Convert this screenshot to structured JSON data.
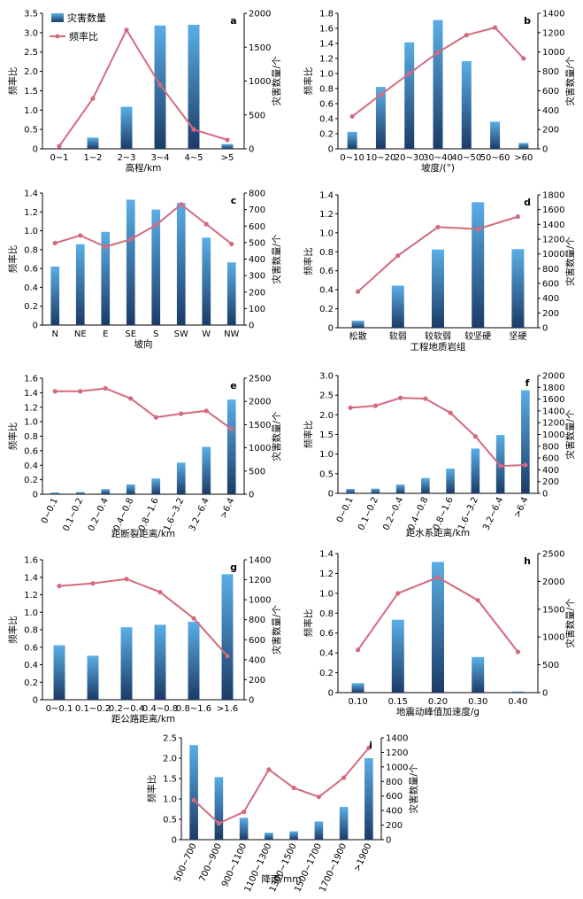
{
  "legend": {
    "bar_label": "灾害数量",
    "line_label": "频率比"
  },
  "colors": {
    "bar_top": "#5aaee6",
    "bar_bottom": "#1b3b66",
    "line": "#d46a7e",
    "axis": "#000000"
  },
  "chart_data": [
    {
      "type": "bar",
      "panel": "a",
      "categories": [
        "0~1",
        "1~2",
        "2~3",
        "3~4",
        "4~5",
        ">5"
      ],
      "xlabel": "高程/km",
      "ylabel_left": "频率比",
      "ylabel_right": "灾害数量/个",
      "ylim_left": [
        0,
        3.5
      ],
      "yticks_left": [
        "0",
        "0.5",
        "1.0",
        "1.5",
        "2.0",
        "2.5",
        "3.0",
        "3.5"
      ],
      "ylim_right": [
        0,
        2000
      ],
      "yticks_right": [
        "0",
        "500",
        "1000",
        "1500",
        "2000"
      ],
      "rotate_x": false,
      "series": [
        {
          "name": "灾害数量",
          "type": "bar",
          "axis": "right",
          "values": [
            0,
            165,
            620,
            1820,
            1830,
            70
          ]
        },
        {
          "name": "频率比",
          "type": "line",
          "axis": "left",
          "values": [
            0.07,
            1.3,
            3.07,
            1.65,
            0.5,
            0.23
          ]
        }
      ]
    },
    {
      "type": "bar",
      "panel": "b",
      "categories": [
        "0~10",
        "10~20",
        "20~30",
        "30~40",
        "40~50",
        "50~60",
        ">60"
      ],
      "xlabel": "坡度/(°)",
      "ylabel_left": "频率比",
      "ylabel_right": "灾害数量/个",
      "ylim_left": [
        0,
        1.8
      ],
      "yticks_left": [
        "0",
        "0.2",
        "0.4",
        "0.6",
        "0.8",
        "1.0",
        "1.2",
        "1.4",
        "1.6",
        "1.8"
      ],
      "ylim_right": [
        0,
        1400
      ],
      "yticks_right": [
        "0",
        "200",
        "400",
        "600",
        "800",
        "1000",
        "1200",
        "1400"
      ],
      "rotate_x": false,
      "series": [
        {
          "name": "灾害数量",
          "type": "bar",
          "axis": "right",
          "values": [
            175,
            640,
            1100,
            1330,
            905,
            280,
            60
          ]
        },
        {
          "name": "频率比",
          "type": "line",
          "axis": "left",
          "values": [
            0.43,
            0.72,
            1.0,
            1.28,
            1.51,
            1.61,
            1.2
          ]
        }
      ]
    },
    {
      "type": "bar",
      "panel": "c",
      "categories": [
        "N",
        "NE",
        "E",
        "SE",
        "S",
        "SW",
        "W",
        "NW"
      ],
      "xlabel": "坡向",
      "ylabel_left": "频率比",
      "ylabel_right": "灾害数量/个",
      "ylim_left": [
        0,
        1.4
      ],
      "yticks_left": [
        "0",
        "0.2",
        "0.4",
        "0.6",
        "0.8",
        "1.0",
        "1.2",
        "1.4"
      ],
      "ylim_right": [
        0,
        800
      ],
      "yticks_right": [
        "0",
        "100",
        "200",
        "300",
        "400",
        "500",
        "600",
        "700",
        "800"
      ],
      "rotate_x": false,
      "series": [
        {
          "name": "灾害数量",
          "type": "bar",
          "axis": "right",
          "values": [
            355,
            490,
            565,
            760,
            700,
            740,
            530,
            380
          ]
        },
        {
          "name": "频率比",
          "type": "line",
          "axis": "left",
          "values": [
            0.87,
            0.95,
            0.83,
            0.91,
            1.06,
            1.28,
            1.07,
            0.86
          ]
        }
      ]
    },
    {
      "type": "bar",
      "panel": "d",
      "categories": [
        "松散",
        "软弱",
        "较软弱",
        "较坚硬",
        "坚硬"
      ],
      "xlabel": "工程地质岩组",
      "ylabel_left": "频率比",
      "ylabel_right": "灾害数量/个",
      "ylim_left": [
        0,
        1.4
      ],
      "yticks_left": [
        "0",
        "0.2",
        "0.4",
        "0.6",
        "0.8",
        "1.0",
        "1.2",
        "1.4"
      ],
      "ylim_right": [
        0,
        1800
      ],
      "yticks_right": [
        "0",
        "200",
        "400",
        "600",
        "800",
        "1000",
        "1200",
        "1400",
        "1600",
        "1800"
      ],
      "rotate_x": false,
      "series": [
        {
          "name": "灾害数量",
          "type": "bar",
          "axis": "right",
          "values": [
            95,
            570,
            1060,
            1700,
            1065
          ]
        },
        {
          "name": "频率比",
          "type": "line",
          "axis": "left",
          "values": [
            0.38,
            0.76,
            1.06,
            1.04,
            1.17
          ]
        }
      ]
    },
    {
      "type": "bar",
      "panel": "e",
      "categories": [
        "0~0.1",
        "0.1~0.2",
        "0.2~0.4",
        "0.4~0.8",
        "0.8~1.6",
        "1.6~3.2",
        "3.2~6.4",
        ">6.4"
      ],
      "xlabel": "距断裂距离/km",
      "ylabel_left": "频率比",
      "ylabel_right": "灾害数量/个",
      "ylim_left": [
        0,
        1.6
      ],
      "yticks_left": [
        "0",
        "0.2",
        "0.4",
        "0.6",
        "0.8",
        "1.0",
        "1.2",
        "1.4",
        "1.6"
      ],
      "ylim_right": [
        0,
        2500
      ],
      "yticks_right": [
        "0",
        "500",
        "1000",
        "1500",
        "2000",
        "2500"
      ],
      "rotate_x": true,
      "series": [
        {
          "name": "灾害数量",
          "type": "bar",
          "axis": "right",
          "values": [
            35,
            45,
            110,
            210,
            340,
            680,
            1020,
            2040
          ]
        },
        {
          "name": "频率比",
          "type": "line",
          "axis": "left",
          "values": [
            1.42,
            1.42,
            1.46,
            1.32,
            1.06,
            1.11,
            1.15,
            0.9
          ]
        }
      ]
    },
    {
      "type": "bar",
      "panel": "f",
      "categories": [
        "0~0.1",
        "0.1~0.2",
        "0.2~0.4",
        "0.4~0.8",
        "0.8~1.6",
        "1.6~3.2",
        "3.2~6.4",
        ">6.4"
      ],
      "xlabel": "距水系距离/km",
      "ylabel_left": "频率比",
      "ylabel_right": "灾害数量/个",
      "ylim_left": [
        0,
        3.0
      ],
      "yticks_left": [
        "0",
        "0.5",
        "1.0",
        "1.5",
        "2.0",
        "2.5",
        "3.0"
      ],
      "ylim_right": [
        0,
        2000
      ],
      "yticks_right": [
        "0",
        "200",
        "400",
        "600",
        "800",
        "1000",
        "1200",
        "1400",
        "1600",
        "1800",
        "2000"
      ],
      "rotate_x": true,
      "series": [
        {
          "name": "灾害数量",
          "type": "bar",
          "axis": "right",
          "values": [
            75,
            80,
            150,
            260,
            420,
            760,
            990,
            1750
          ]
        },
        {
          "name": "频率比",
          "type": "line",
          "axis": "left",
          "values": [
            2.18,
            2.23,
            2.43,
            2.41,
            2.05,
            1.45,
            0.7,
            0.72
          ]
        }
      ]
    },
    {
      "type": "bar",
      "panel": "g",
      "categories": [
        "0~0.1",
        "0.1~0.2",
        "0.2~0.4",
        "0.4~0.8",
        "0.8~1.6",
        ">1.6"
      ],
      "xlabel": "距公路距离/km",
      "ylabel_left": "频率比",
      "ylabel_right": "灾害数量/个",
      "ylim_left": [
        0,
        1.6
      ],
      "yticks_left": [
        "0",
        "0.2",
        "0.4",
        "0.6",
        "0.8",
        "1.0",
        "1.2",
        "1.4",
        "1.6"
      ],
      "ylim_right": [
        0,
        1400
      ],
      "yticks_right": [
        "0",
        "200",
        "400",
        "600",
        "800",
        "1000",
        "1200",
        "1400"
      ],
      "rotate_x": false,
      "series": [
        {
          "name": "灾害数量",
          "type": "bar",
          "axis": "right",
          "values": [
            545,
            440,
            725,
            750,
            780,
            1255
          ]
        },
        {
          "name": "频率比",
          "type": "line",
          "axis": "left",
          "values": [
            1.3,
            1.33,
            1.38,
            1.23,
            0.93,
            0.5
          ]
        }
      ]
    },
    {
      "type": "bar",
      "panel": "h",
      "categories": [
        "0.10",
        "0.15",
        "0.20",
        "0.30",
        "0.40"
      ],
      "xlabel": "地震动峰值加速度/g",
      "ylabel_left": "频率比",
      "ylabel_right": "灾害数量/个",
      "ylim_left": [
        0,
        1.4
      ],
      "yticks_left": [
        "0",
        "0.2",
        "0.4",
        "0.6",
        "0.8",
        "1.0",
        "1.2",
        "1.4"
      ],
      "ylim_right": [
        0,
        2500
      ],
      "yticks_right": [
        "0",
        "500",
        "1000",
        "1500",
        "2000",
        "2500"
      ],
      "rotate_x": false,
      "series": [
        {
          "name": "灾害数量",
          "type": "bar",
          "axis": "right",
          "values": [
            170,
            1310,
            2350,
            640,
            20
          ]
        },
        {
          "name": "频率比",
          "type": "line",
          "axis": "left",
          "values": [
            0.43,
            1.0,
            1.16,
            0.93,
            0.41
          ]
        }
      ]
    },
    {
      "type": "bar",
      "panel": "i",
      "categories": [
        "500~700",
        "700~900",
        "900~1100",
        "1100~1300",
        "1300~1500",
        "1500~1700",
        "1700~1900",
        ">1900"
      ],
      "xlabel": "降雨/mm",
      "ylabel_left": "频率比",
      "ylabel_right": "灾害数量/个",
      "ylim_left": [
        0,
        2.5
      ],
      "yticks_left": [
        "0",
        "0.5",
        "1.0",
        "1.5",
        "2.0",
        "2.5"
      ],
      "ylim_right": [
        0,
        1400
      ],
      "yticks_right": [
        "0",
        "200",
        "400",
        "600",
        "800",
        "1000",
        "1200",
        "1400"
      ],
      "rotate_x": true,
      "series": [
        {
          "name": "灾害数量",
          "type": "bar",
          "axis": "right",
          "values": [
            1300,
            860,
            300,
            95,
            115,
            250,
            450,
            1120
          ]
        },
        {
          "name": "频率比",
          "type": "line",
          "axis": "left",
          "values": [
            0.97,
            0.4,
            0.68,
            1.72,
            1.27,
            1.05,
            1.52,
            2.25
          ]
        }
      ]
    }
  ]
}
